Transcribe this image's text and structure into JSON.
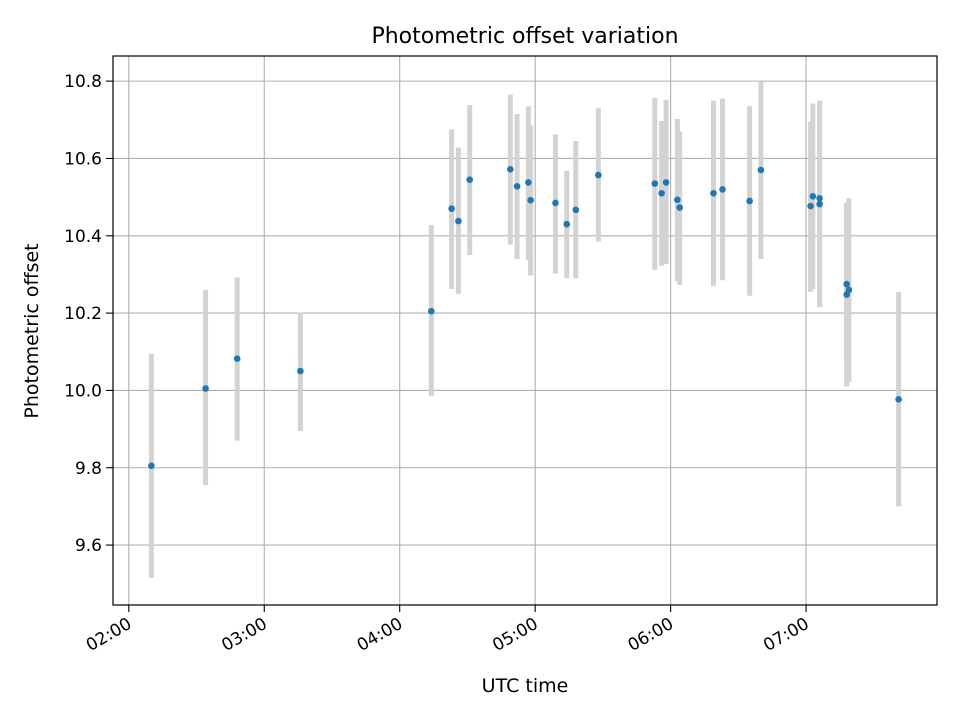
{
  "chart_data": {
    "type": "scatter",
    "title": "Photometric offset variation",
    "xlabel": "UTC time",
    "ylabel": "Photometric offset",
    "xlim": [
      "01:53",
      "07:58"
    ],
    "ylim": [
      9.445,
      10.865
    ],
    "xticks": [
      "02:00",
      "03:00",
      "04:00",
      "05:00",
      "06:00",
      "07:00"
    ],
    "yticks": [
      "9.6",
      "9.8",
      "10.0",
      "10.2",
      "10.4",
      "10.6",
      "10.8"
    ],
    "grid": true,
    "marker_color": "#1f77b4",
    "errorbar_color": "#d3d3d3",
    "points": [
      {
        "x": "02:10",
        "y": 9.805,
        "ylow": 9.515,
        "yhigh": 10.095
      },
      {
        "x": "02:34",
        "y": 10.005,
        "ylow": 9.755,
        "yhigh": 10.26
      },
      {
        "x": "02:48",
        "y": 10.082,
        "ylow": 9.87,
        "yhigh": 10.292
      },
      {
        "x": "03:16",
        "y": 10.05,
        "ylow": 9.895,
        "yhigh": 10.202
      },
      {
        "x": "04:14",
        "y": 10.205,
        "ylow": 9.985,
        "yhigh": 10.428
      },
      {
        "x": "04:23",
        "y": 10.47,
        "ylow": 10.262,
        "yhigh": 10.675
      },
      {
        "x": "04:26",
        "y": 10.438,
        "ylow": 10.25,
        "yhigh": 10.628
      },
      {
        "x": "04:31",
        "y": 10.545,
        "ylow": 10.35,
        "yhigh": 10.738
      },
      {
        "x": "04:49",
        "y": 10.572,
        "ylow": 10.377,
        "yhigh": 10.765
      },
      {
        "x": "04:52",
        "y": 10.528,
        "ylow": 10.34,
        "yhigh": 10.715
      },
      {
        "x": "04:57",
        "y": 10.538,
        "ylow": 10.337,
        "yhigh": 10.735
      },
      {
        "x": "04:58",
        "y": 10.492,
        "ylow": 10.297,
        "yhigh": 10.685
      },
      {
        "x": "05:09",
        "y": 10.485,
        "ylow": 10.302,
        "yhigh": 10.662
      },
      {
        "x": "05:14",
        "y": 10.43,
        "ylow": 10.29,
        "yhigh": 10.568
      },
      {
        "x": "05:18",
        "y": 10.467,
        "ylow": 10.29,
        "yhigh": 10.645
      },
      {
        "x": "05:28",
        "y": 10.557,
        "ylow": 10.385,
        "yhigh": 10.73
      },
      {
        "x": "05:53",
        "y": 10.535,
        "ylow": 10.312,
        "yhigh": 10.757
      },
      {
        "x": "05:56",
        "y": 10.51,
        "ylow": 10.322,
        "yhigh": 10.697
      },
      {
        "x": "05:58",
        "y": 10.538,
        "ylow": 10.327,
        "yhigh": 10.752
      },
      {
        "x": "06:03",
        "y": 10.493,
        "ylow": 10.283,
        "yhigh": 10.702
      },
      {
        "x": "06:04",
        "y": 10.473,
        "ylow": 10.273,
        "yhigh": 10.67
      },
      {
        "x": "06:19",
        "y": 10.51,
        "ylow": 10.27,
        "yhigh": 10.75
      },
      {
        "x": "06:23",
        "y": 10.52,
        "ylow": 10.285,
        "yhigh": 10.755
      },
      {
        "x": "06:35",
        "y": 10.49,
        "ylow": 10.245,
        "yhigh": 10.735
      },
      {
        "x": "06:40",
        "y": 10.57,
        "ylow": 10.34,
        "yhigh": 10.8
      },
      {
        "x": "07:02",
        "y": 10.477,
        "ylow": 10.255,
        "yhigh": 10.695
      },
      {
        "x": "07:03",
        "y": 10.502,
        "ylow": 10.262,
        "yhigh": 10.742
      },
      {
        "x": "07:06",
        "y": 10.497,
        "ylow": 10.262,
        "yhigh": 10.735
      },
      {
        "x": "07:06",
        "y": 10.482,
        "ylow": 10.215,
        "yhigh": 10.75
      },
      {
        "x": "07:18",
        "y": 10.275,
        "ylow": 10.065,
        "yhigh": 10.485
      },
      {
        "x": "07:18",
        "y": 10.248,
        "ylow": 10.01,
        "yhigh": 10.485
      },
      {
        "x": "07:19",
        "y": 10.26,
        "ylow": 10.022,
        "yhigh": 10.497
      },
      {
        "x": "07:41",
        "y": 9.977,
        "ylow": 9.7,
        "yhigh": 10.255
      }
    ]
  }
}
